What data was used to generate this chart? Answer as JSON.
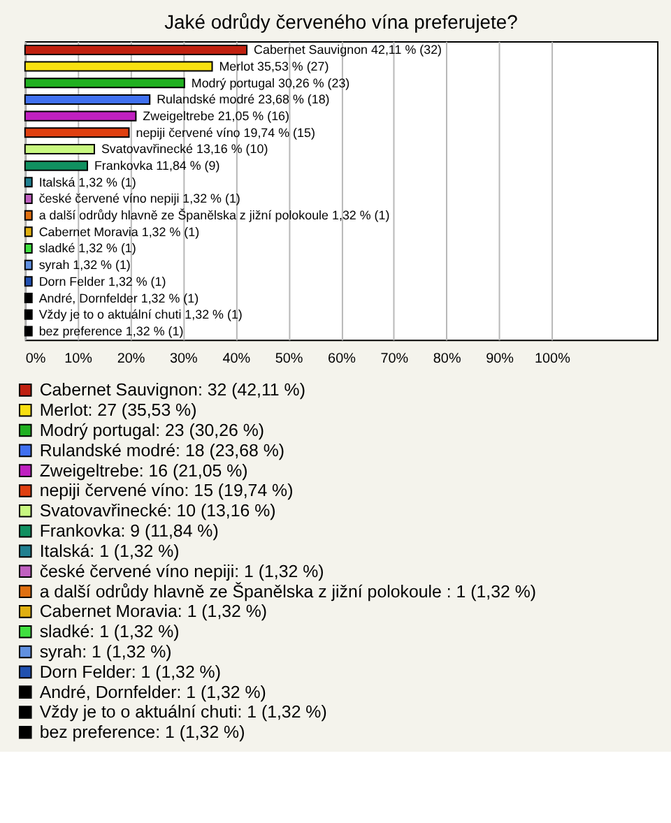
{
  "chart_data": {
    "type": "bar",
    "orientation": "horizontal",
    "title": "Jaké odrůdy červeného vína preferujete?",
    "categories": [
      null,
      null,
      null,
      null,
      null,
      null,
      null,
      null,
      null,
      null,
      null,
      null,
      null,
      null,
      null,
      null,
      null,
      null
    ],
    "series": [
      {
        "name": "Cabernet Sauvignon: 32 (42,11 %)",
        "color": "#c02010",
        "values": [
          42.11,
          null,
          null,
          null,
          null,
          null,
          null,
          null,
          null,
          null,
          null,
          null,
          null,
          null,
          null,
          null,
          null,
          null
        ],
        "value_labels": [
          "Cabernet Sauvignon 42,11 % (32)",
          null,
          null,
          null,
          null,
          null,
          null,
          null,
          null,
          null,
          null,
          null,
          null,
          null,
          null,
          null,
          null,
          null
        ]
      },
      {
        "name": "Merlot: 27 (35,53 %)",
        "color": "#f8e010",
        "values": [
          null,
          35.53,
          null,
          null,
          null,
          null,
          null,
          null,
          null,
          null,
          null,
          null,
          null,
          null,
          null,
          null,
          null,
          null
        ],
        "value_labels": [
          null,
          "Merlot 35,53 % (27)",
          null,
          null,
          null,
          null,
          null,
          null,
          null,
          null,
          null,
          null,
          null,
          null,
          null,
          null,
          null,
          null
        ]
      },
      {
        "name": "Modrý portugal: 23 (30,26 %)",
        "color": "#20b020",
        "values": [
          null,
          null,
          30.26,
          null,
          null,
          null,
          null,
          null,
          null,
          null,
          null,
          null,
          null,
          null,
          null,
          null,
          null,
          null
        ],
        "value_labels": [
          null,
          null,
          "Modrý portugal 30,26 % (23)",
          null,
          null,
          null,
          null,
          null,
          null,
          null,
          null,
          null,
          null,
          null,
          null,
          null,
          null,
          null
        ]
      },
      {
        "name": "Rulandské modré: 18 (23,68 %)",
        "color": "#4070f0",
        "values": [
          null,
          null,
          null,
          23.68,
          null,
          null,
          null,
          null,
          null,
          null,
          null,
          null,
          null,
          null,
          null,
          null,
          null,
          null
        ],
        "value_labels": [
          null,
          null,
          null,
          "Rulandské modré 23,68 % (18)",
          null,
          null,
          null,
          null,
          null,
          null,
          null,
          null,
          null,
          null,
          null,
          null,
          null,
          null
        ]
      },
      {
        "name": "Zweigeltrebe: 16 (21,05 %)",
        "color": "#c020c0",
        "values": [
          null,
          null,
          null,
          null,
          21.05,
          null,
          null,
          null,
          null,
          null,
          null,
          null,
          null,
          null,
          null,
          null,
          null,
          null
        ],
        "value_labels": [
          null,
          null,
          null,
          null,
          "Zweigeltrebe 21,05 % (16)",
          null,
          null,
          null,
          null,
          null,
          null,
          null,
          null,
          null,
          null,
          null,
          null,
          null
        ]
      },
      {
        "name": "nepiji červené víno: 15 (19,74 %)",
        "color": "#e04010",
        "values": [
          null,
          null,
          null,
          null,
          null,
          19.74,
          null,
          null,
          null,
          null,
          null,
          null,
          null,
          null,
          null,
          null,
          null,
          null
        ],
        "value_labels": [
          null,
          null,
          null,
          null,
          null,
          "nepiji červené víno 19,74 % (15)",
          null,
          null,
          null,
          null,
          null,
          null,
          null,
          null,
          null,
          null,
          null,
          null
        ]
      },
      {
        "name": "Svatovavřinecké: 10 (13,16 %)",
        "color": "#c8f880",
        "values": [
          null,
          null,
          null,
          null,
          null,
          null,
          13.16,
          null,
          null,
          null,
          null,
          null,
          null,
          null,
          null,
          null,
          null,
          null
        ],
        "value_labels": [
          null,
          null,
          null,
          null,
          null,
          null,
          "Svatovavřinecké 13,16 % (10)",
          null,
          null,
          null,
          null,
          null,
          null,
          null,
          null,
          null,
          null,
          null
        ]
      },
      {
        "name": "Frankovka: 9 (11,84 %)",
        "color": "#109060",
        "values": [
          null,
          null,
          null,
          null,
          null,
          null,
          null,
          11.84,
          null,
          null,
          null,
          null,
          null,
          null,
          null,
          null,
          null,
          null
        ],
        "value_labels": [
          null,
          null,
          null,
          null,
          null,
          null,
          null,
          "Frankovka 11,84 % (9)",
          null,
          null,
          null,
          null,
          null,
          null,
          null,
          null,
          null,
          null
        ]
      },
      {
        "name": "Italská: 1 (1,32 %)",
        "color": "#208090",
        "values": [
          null,
          null,
          null,
          null,
          null,
          null,
          null,
          null,
          1.32,
          null,
          null,
          null,
          null,
          null,
          null,
          null,
          null,
          null
        ],
        "value_labels": [
          null,
          null,
          null,
          null,
          null,
          null,
          null,
          null,
          "Italská 1,32 % (1)",
          null,
          null,
          null,
          null,
          null,
          null,
          null,
          null,
          null
        ]
      },
      {
        "name": "české červené víno nepiji: 1 (1,32 %)",
        "color": "#c060c0",
        "values": [
          null,
          null,
          null,
          null,
          null,
          null,
          null,
          null,
          null,
          1.32,
          null,
          null,
          null,
          null,
          null,
          null,
          null,
          null
        ],
        "value_labels": [
          null,
          null,
          null,
          null,
          null,
          null,
          null,
          null,
          null,
          "české červené víno nepiji 1,32 % (1)",
          null,
          null,
          null,
          null,
          null,
          null,
          null,
          null
        ]
      },
      {
        "name": "a další odrůdy hlavně ze Španělska z jižní polokoule : 1 (1,32 %)",
        "color": "#e07010",
        "values": [
          null,
          null,
          null,
          null,
          null,
          null,
          null,
          null,
          null,
          null,
          1.32,
          null,
          null,
          null,
          null,
          null,
          null,
          null
        ],
        "value_labels": [
          null,
          null,
          null,
          null,
          null,
          null,
          null,
          null,
          null,
          null,
          "a další odrůdy hlavně ze Španělska z jižní polokoule  1,32 % (1)",
          null,
          null,
          null,
          null,
          null,
          null,
          null
        ]
      },
      {
        "name": "Cabernet Moravia: 1 (1,32 %)",
        "color": "#e0b010",
        "values": [
          null,
          null,
          null,
          null,
          null,
          null,
          null,
          null,
          null,
          null,
          null,
          1.32,
          null,
          null,
          null,
          null,
          null,
          null
        ],
        "value_labels": [
          null,
          null,
          null,
          null,
          null,
          null,
          null,
          null,
          null,
          null,
          null,
          "Cabernet Moravia 1,32 % (1)",
          null,
          null,
          null,
          null,
          null,
          null
        ]
      },
      {
        "name": "sladké: 1 (1,32 %)",
        "color": "#40e040",
        "values": [
          null,
          null,
          null,
          null,
          null,
          null,
          null,
          null,
          null,
          null,
          null,
          null,
          1.32,
          null,
          null,
          null,
          null,
          null
        ],
        "value_labels": [
          null,
          null,
          null,
          null,
          null,
          null,
          null,
          null,
          null,
          null,
          null,
          null,
          "sladké 1,32 % (1)",
          null,
          null,
          null,
          null,
          null
        ]
      },
      {
        "name": "syrah: 1 (1,32 %)",
        "color": "#6090e0",
        "values": [
          null,
          null,
          null,
          null,
          null,
          null,
          null,
          null,
          null,
          null,
          null,
          null,
          null,
          1.32,
          null,
          null,
          null,
          null
        ],
        "value_labels": [
          null,
          null,
          null,
          null,
          null,
          null,
          null,
          null,
          null,
          null,
          null,
          null,
          null,
          "syrah 1,32 % (1)",
          null,
          null,
          null,
          null
        ]
      },
      {
        "name": "Dorn Felder: 1 (1,32 %)",
        "color": "#2050b0",
        "values": [
          null,
          null,
          null,
          null,
          null,
          null,
          null,
          null,
          null,
          null,
          null,
          null,
          null,
          null,
          1.32,
          null,
          null,
          null
        ],
        "value_labels": [
          null,
          null,
          null,
          null,
          null,
          null,
          null,
          null,
          null,
          null,
          null,
          null,
          null,
          null,
          "Dorn Felder 1,32 % (1)",
          null,
          null,
          null
        ]
      },
      {
        "name": "André, Dornfelder: 1 (1,32 %)",
        "color": "#000000",
        "values": [
          null,
          null,
          null,
          null,
          null,
          null,
          null,
          null,
          null,
          null,
          null,
          null,
          null,
          null,
          null,
          1.32,
          null,
          null
        ],
        "value_labels": [
          null,
          null,
          null,
          null,
          null,
          null,
          null,
          null,
          null,
          null,
          null,
          null,
          null,
          null,
          null,
          "André, Dornfelder 1,32 % (1)",
          null,
          null
        ]
      },
      {
        "name": "Vždy je to o aktuální chuti: 1 (1,32 %)",
        "color": "#000000",
        "values": [
          null,
          null,
          null,
          null,
          null,
          null,
          null,
          null,
          null,
          null,
          null,
          null,
          null,
          null,
          null,
          null,
          1.32,
          null
        ],
        "value_labels": [
          null,
          null,
          null,
          null,
          null,
          null,
          null,
          null,
          null,
          null,
          null,
          null,
          null,
          null,
          null,
          null,
          "Vždy je to o aktuální chuti 1,32 % (1)",
          null
        ]
      },
      {
        "name": "bez preference: 1 (1,32 %)",
        "color": "#000000",
        "values": [
          null,
          null,
          null,
          null,
          null,
          null,
          null,
          null,
          null,
          null,
          null,
          null,
          null,
          null,
          null,
          null,
          null,
          1.32
        ],
        "value_labels": [
          null,
          null,
          null,
          null,
          null,
          null,
          null,
          null,
          null,
          null,
          null,
          null,
          null,
          null,
          null,
          null,
          null,
          "bez preference 1,32 % (1)"
        ]
      }
    ],
    "xlim": [
      0,
      120
    ],
    "xticks": [
      {
        "value": 0,
        "label": "0%"
      },
      {
        "value": 10,
        "label": "10%"
      },
      {
        "value": 20,
        "label": "20%"
      },
      {
        "value": 30,
        "label": "30%"
      },
      {
        "value": 40,
        "label": "40%"
      },
      {
        "value": 50,
        "label": "50%"
      },
      {
        "value": 60,
        "label": "60%"
      },
      {
        "value": 70,
        "label": "70%"
      },
      {
        "value": 80,
        "label": "80%"
      },
      {
        "value": 90,
        "label": "90%"
      },
      {
        "value": 100,
        "label": "100%"
      }
    ],
    "grid": "x",
    "tick_labels": "x",
    "legend": "bottom"
  }
}
